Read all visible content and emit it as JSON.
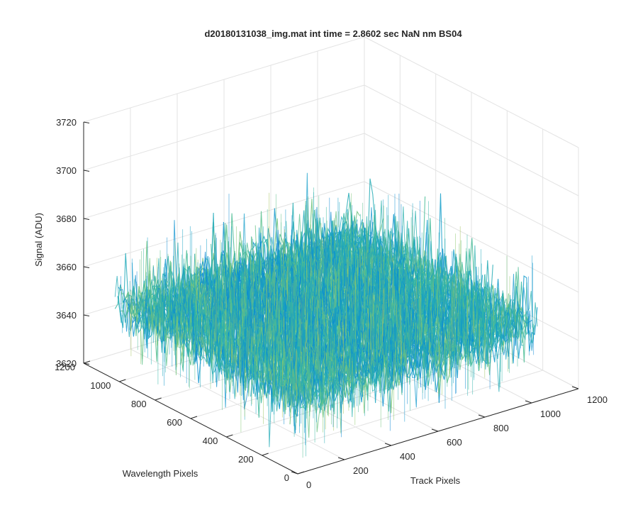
{
  "chart_data": {
    "type": "surface3d",
    "title": "d20180131038_img.mat int time = 2.8602 sec  NaN nm BS04",
    "xlabel": "Track Pixels",
    "ylabel": "Wavelength Pixels",
    "zlabel": "Signal (ADU)",
    "xlim": [
      0,
      1200
    ],
    "ylim": [
      0,
      1200
    ],
    "zlim": [
      3620,
      3720
    ],
    "xticks": [
      "0",
      "200",
      "400",
      "600",
      "800",
      "1000",
      "1200"
    ],
    "yticks": [
      "0",
      "200",
      "400",
      "600",
      "800",
      "1000",
      "1200"
    ],
    "zticks": [
      "3620",
      "3640",
      "3660",
      "3680",
      "3700",
      "3720"
    ],
    "grid": true,
    "colormap": "parula",
    "surface": {
      "x_extent": [
        0,
        1024
      ],
      "y_extent": [
        0,
        1024
      ],
      "mean_signal": 3651,
      "spread": [
        3625,
        3705
      ]
    }
  }
}
